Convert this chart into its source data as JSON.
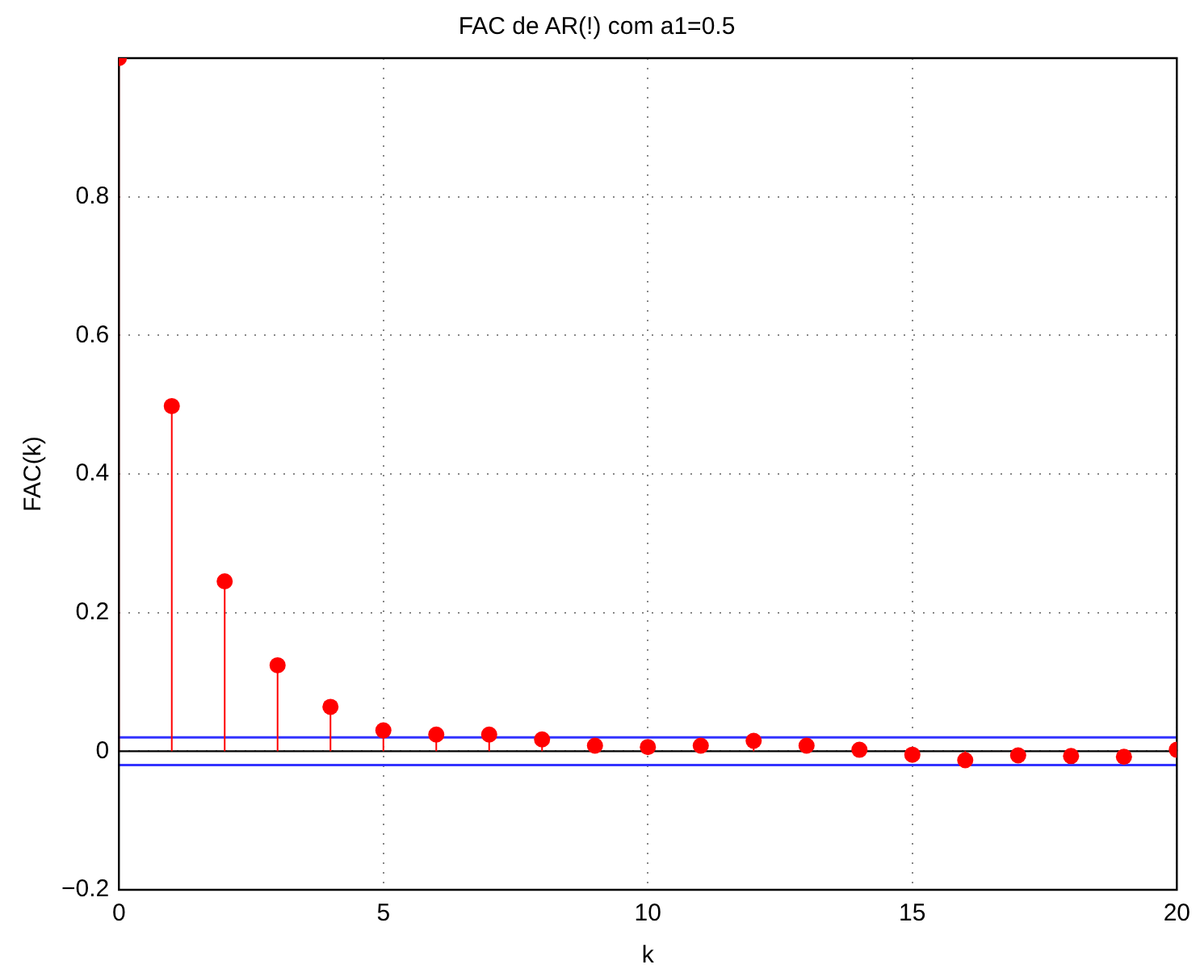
{
  "chart_data": {
    "type": "lollipop",
    "title": "FAC de AR(!) com a1=0.5",
    "xlabel": "k",
    "ylabel": "FAC(k)",
    "x": [
      0,
      1,
      2,
      3,
      4,
      5,
      6,
      7,
      8,
      9,
      10,
      11,
      12,
      13,
      14,
      15,
      16,
      17,
      18,
      19,
      20
    ],
    "series": [
      {
        "color": "#ff0000",
        "values": [
          1.0,
          0.498,
          0.245,
          0.124,
          0.064,
          0.03,
          0.024,
          0.024,
          0.017,
          0.008,
          0.006,
          0.008,
          0.015,
          0.008,
          0.002,
          -0.005,
          -0.013,
          -0.006,
          -0.007,
          -0.008,
          0.002
        ]
      }
    ],
    "xlim": [
      0,
      20
    ],
    "xticks": [
      0,
      5,
      10,
      15,
      20
    ],
    "ylim": [
      -0.2,
      1
    ],
    "yticks": [
      {
        "value": -0.2,
        "label": "−0.2"
      },
      0,
      0.2,
      0.4,
      0.6,
      0.8
    ],
    "ref_lines": [
      {
        "axis": "y",
        "value": 0.02,
        "color": "#3333ff"
      },
      {
        "axis": "y",
        "value": -0.02,
        "color": "#3333ff"
      }
    ],
    "grid": true,
    "marker": "circle",
    "legend": false
  }
}
